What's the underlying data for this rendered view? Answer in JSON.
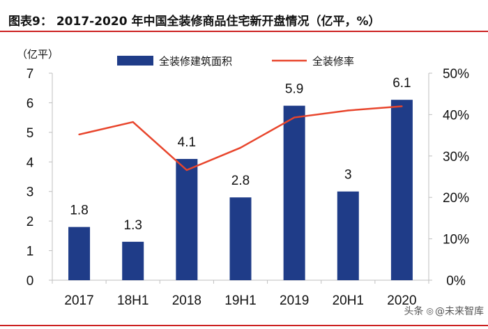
{
  "title": {
    "label": "图表9：",
    "text": "2017-2020 年中国全装修商品住宅新开盘情况（亿平，%）"
  },
  "colors": {
    "bar": "#1f3c88",
    "line": "#e8452c",
    "rule": "#cc2020",
    "text": "#111111",
    "axis": "#bfbfbf"
  },
  "watermark": {
    "source": "头条",
    "icon": "wechat-icon",
    "text": "@未来智库"
  },
  "chart_data": {
    "type": "bar+line",
    "categories": [
      "2017",
      "18H1",
      "2018",
      "19H1",
      "2019",
      "20H1",
      "2020"
    ],
    "series": [
      {
        "name": "全装修建筑面积",
        "type": "bar",
        "axis": "left",
        "values": [
          1.8,
          1.3,
          4.1,
          2.8,
          5.9,
          3,
          6.1
        ],
        "labels": [
          "1.8",
          "1.3",
          "4.1",
          "2.8",
          "5.9",
          "3",
          "6.1"
        ]
      },
      {
        "name": "全装修率",
        "type": "line",
        "axis": "right",
        "values": [
          35.2,
          38.2,
          26.6,
          32.0,
          39.3,
          41.0,
          42.0
        ]
      }
    ],
    "left_axis": {
      "unit_label": "（亿平）",
      "ylim": [
        0,
        7
      ],
      "ticks": [
        0,
        1,
        2,
        3,
        4,
        5,
        6,
        7
      ],
      "tick_labels": [
        "0",
        "1",
        "2",
        "3",
        "4",
        "5",
        "6",
        "7"
      ]
    },
    "right_axis": {
      "ylim": [
        0,
        50
      ],
      "ticks": [
        0,
        10,
        20,
        30,
        40,
        50
      ],
      "tick_labels": [
        "0%",
        "10%",
        "20%",
        "30%",
        "40%",
        "50%"
      ]
    },
    "legend": {
      "position": "top",
      "entries": [
        "全装修建筑面积",
        "全装修率"
      ]
    }
  }
}
